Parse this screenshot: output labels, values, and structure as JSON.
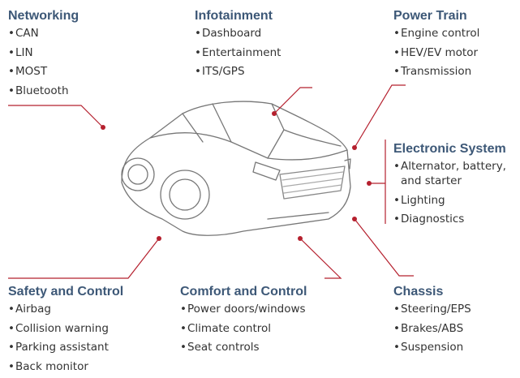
{
  "groups": [
    {
      "title": "Networking",
      "items": [
        "CAN",
        "LIN",
        "MOST",
        "Bluetooth"
      ]
    },
    {
      "title": "Infotainment",
      "items": [
        "Dashboard",
        "Entertainment",
        "ITS/GPS"
      ]
    },
    {
      "title": "Power Train",
      "items": [
        "Engine control",
        "HEV/EV motor",
        "Transmission"
      ]
    },
    {
      "title": "Electronic System",
      "items": [
        "Alternator, battery, and starter",
        "Lighting",
        "Diagnostics"
      ]
    },
    {
      "title": "Safety and Control",
      "items": [
        "Airbag",
        "Collision warning",
        "Parking assistant",
        "Back monitor"
      ]
    },
    {
      "title": "Comfort and Control",
      "items": [
        "Power doors/windows",
        "Climate control",
        "Seat controls"
      ]
    },
    {
      "title": "Chassis",
      "items": [
        "Steering/EPS",
        "Brakes/ABS",
        "Suspension"
      ]
    }
  ]
}
